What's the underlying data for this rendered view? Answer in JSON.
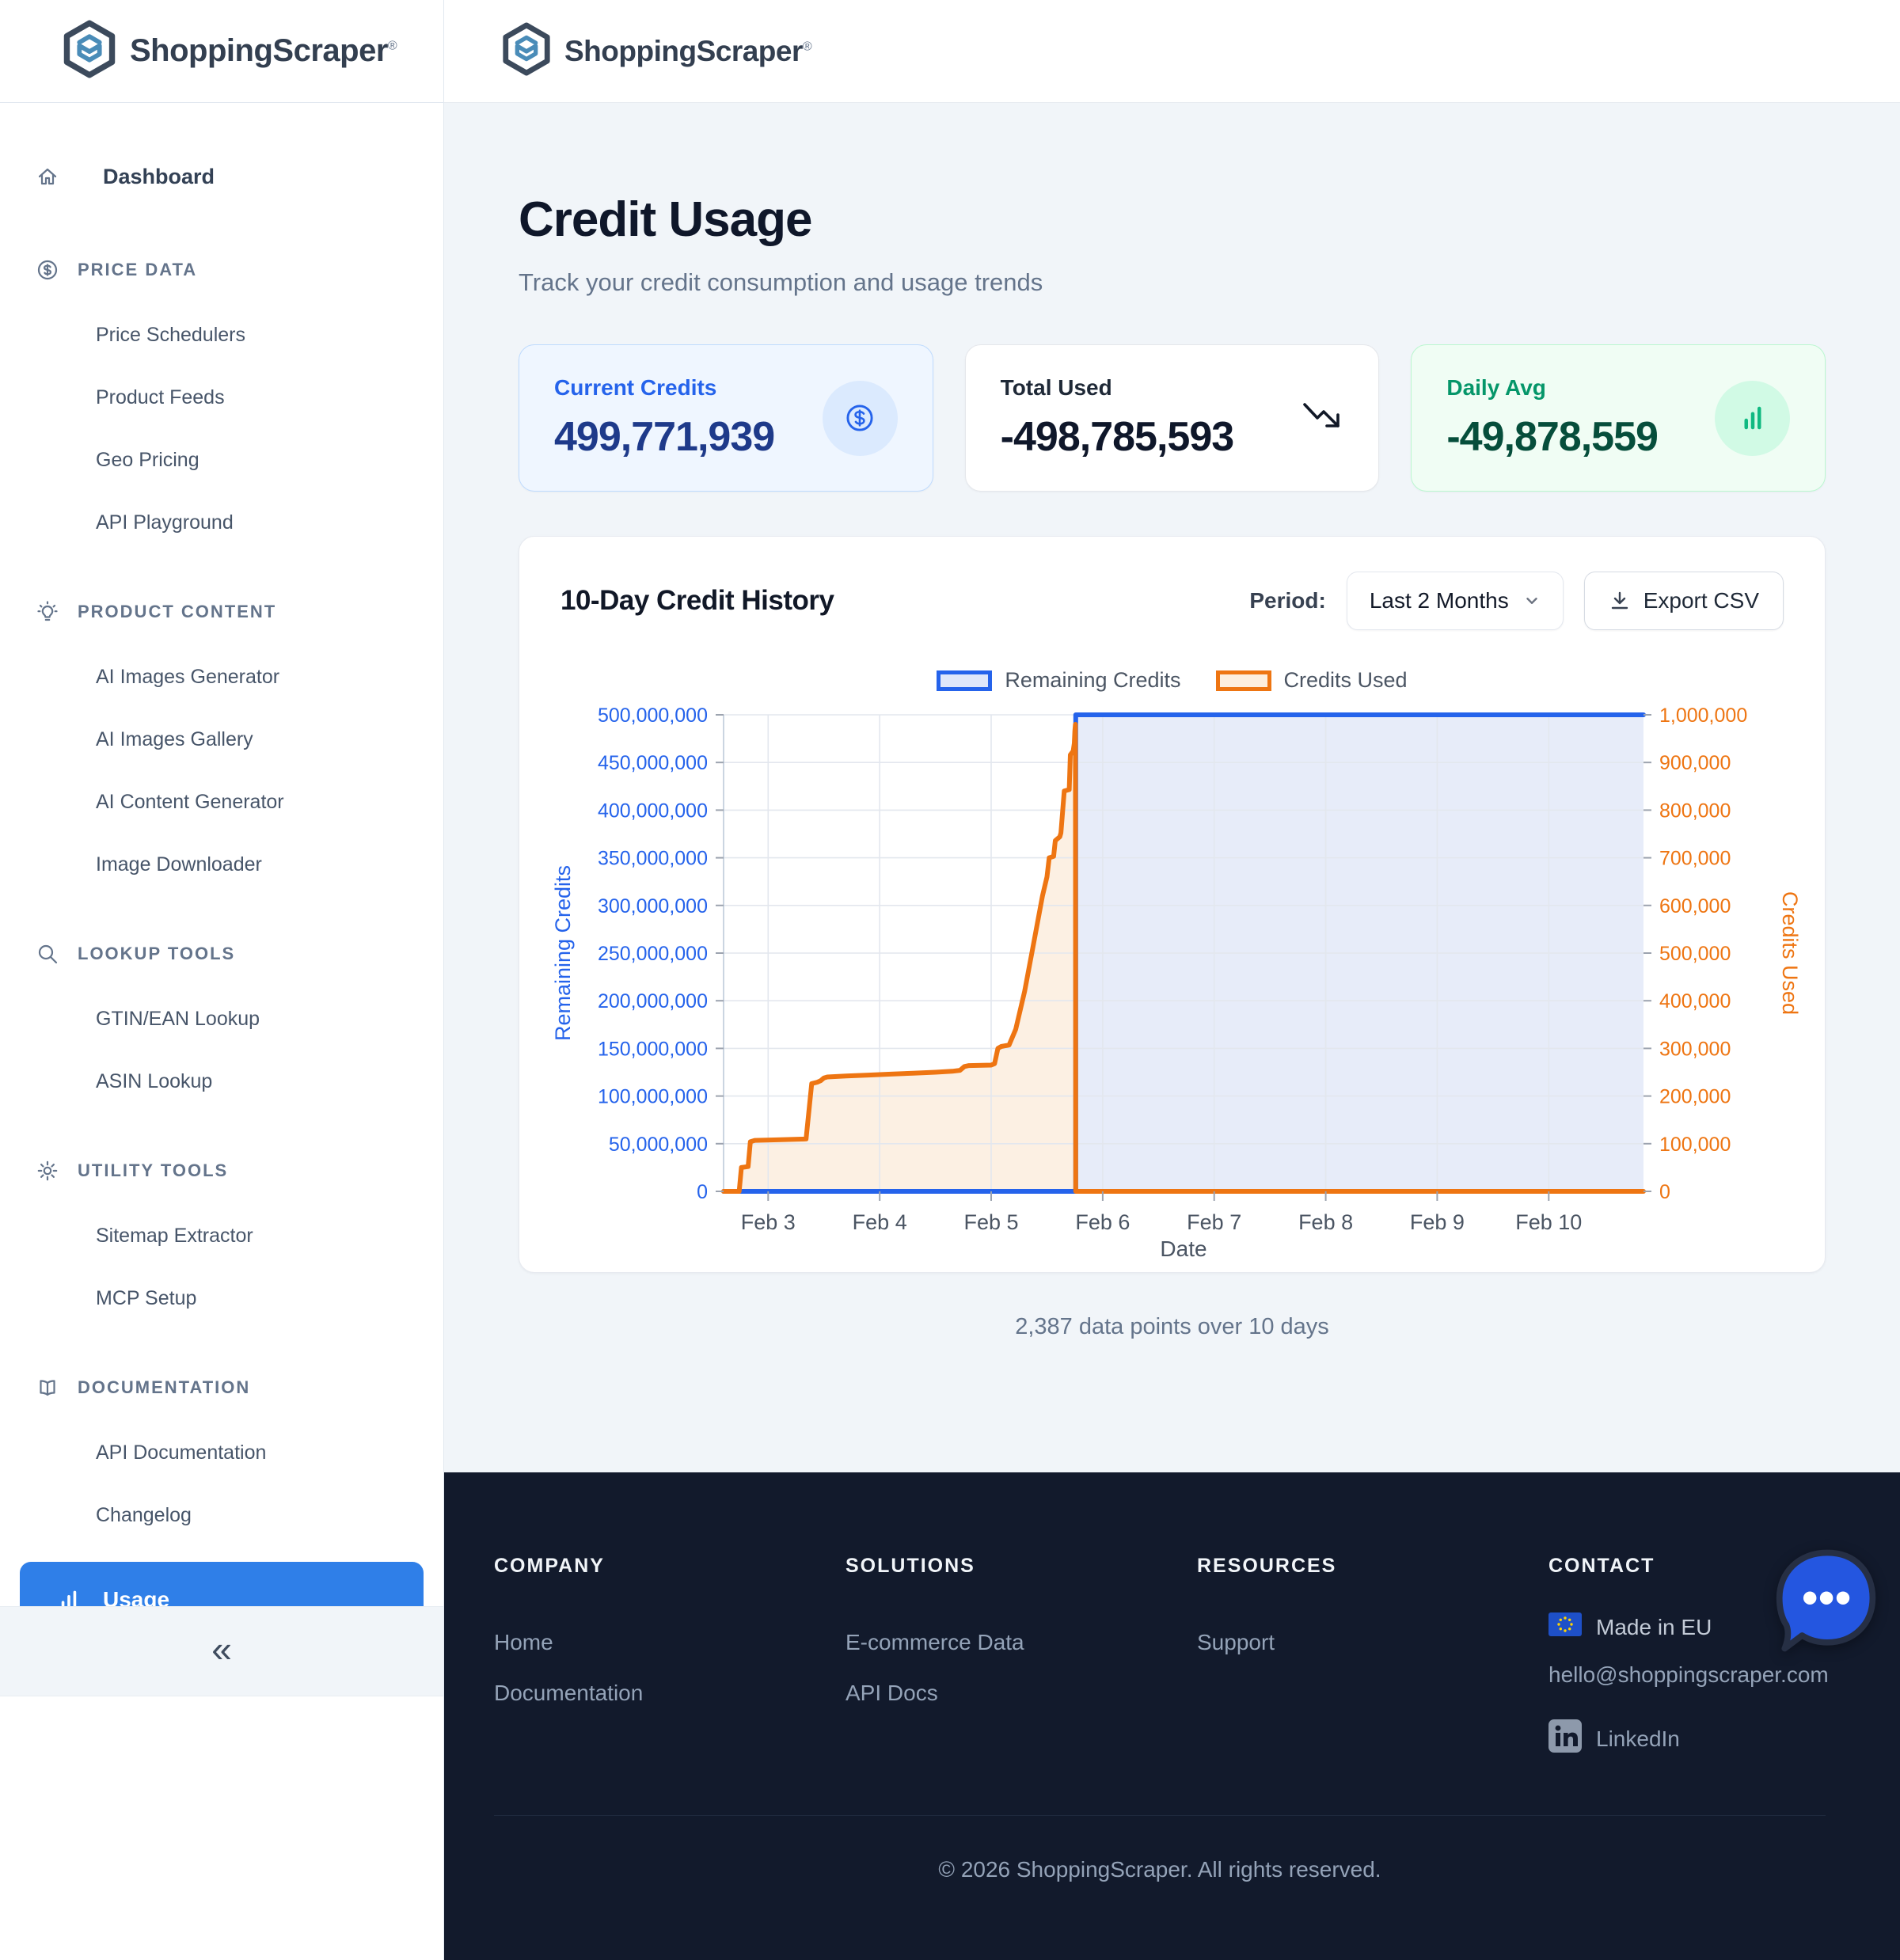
{
  "brand": {
    "name": "ShoppingScraper",
    "registered": "®"
  },
  "sidebar": {
    "dashboard": {
      "label": "Dashboard",
      "icon": "home"
    },
    "sections": [
      {
        "header": "PRICE DATA",
        "icon": "dollar-circle-icon",
        "items": [
          "Price Schedulers",
          "Product Feeds",
          "Geo Pricing",
          "API Playground"
        ]
      },
      {
        "header": "PRODUCT CONTENT",
        "icon": "lightbulb-icon",
        "items": [
          "AI Images Generator",
          "AI Images Gallery",
          "AI Content Generator",
          "Image Downloader"
        ]
      },
      {
        "header": "LOOKUP TOOLS",
        "icon": "search-icon",
        "items": [
          "GTIN/EAN Lookup",
          "ASIN Lookup"
        ]
      },
      {
        "header": "UTILITY TOOLS",
        "icon": "gear-icon",
        "items": [
          "Sitemap Extractor",
          "MCP Setup"
        ]
      },
      {
        "header": "DOCUMENTATION",
        "icon": "book-icon",
        "items": [
          "API Documentation",
          "Changelog"
        ]
      }
    ],
    "usage": {
      "label": "Usage",
      "icon": "bar-chart-icon"
    },
    "collapse_icon": "«"
  },
  "page": {
    "title": "Credit Usage",
    "subtitle": "Track your credit consumption and usage trends"
  },
  "stats": [
    {
      "label": "Current Credits",
      "value": "499,771,939",
      "icon": "dollar-circle-icon",
      "theme": "blue"
    },
    {
      "label": "Total Used",
      "value": "-498,785,593",
      "icon": "trending-down-icon",
      "theme": "white"
    },
    {
      "label": "Daily Avg",
      "value": "-49,878,559",
      "icon": "bar-chart-icon",
      "theme": "green"
    }
  ],
  "chart_card": {
    "title": "10-Day Credit History",
    "period_label": "Period:",
    "period_value": "Last 2 Months",
    "export_label": "Export CSV",
    "footnote": "2,387 data points over 10 days"
  },
  "chart_data": {
    "type": "area",
    "title": "10-Day Credit History",
    "grid": true,
    "legend_position": "top-center",
    "x_axis": {
      "label": "Date",
      "domain": [
        2.6,
        10.85
      ],
      "ticks": [
        {
          "label": "Feb 3",
          "day": 3
        },
        {
          "label": "Feb 4",
          "day": 4
        },
        {
          "label": "Feb 5",
          "day": 5
        },
        {
          "label": "Feb 6",
          "day": 6
        },
        {
          "label": "Feb 7",
          "day": 7
        },
        {
          "label": "Feb 8",
          "day": 8
        },
        {
          "label": "Feb 9",
          "day": 9
        },
        {
          "label": "Feb 10",
          "day": 10
        }
      ]
    },
    "y_left": {
      "label": "Remaining Credits",
      "color": "#2563eb",
      "min": 0,
      "max": 500000000,
      "tick_step": 50000000
    },
    "y_right": {
      "label": "Credits Used",
      "color": "#ee7512",
      "min": 0,
      "max": 1000000,
      "tick_step": 100000
    },
    "series": [
      {
        "name": "Remaining Credits",
        "axis": "left",
        "color": "#2563eb",
        "fill": "#e7ecf9",
        "legend_fill": "#dfe7fa",
        "points": [
          [
            2.6,
            0
          ],
          [
            5.758,
            0
          ],
          [
            5.758,
            500000000
          ],
          [
            10.85,
            500000000
          ]
        ]
      },
      {
        "name": "Credits Used",
        "axis": "right",
        "color": "#ee7512",
        "fill": "#fcf0e3",
        "legend_fill": "#fdeedd",
        "points": [
          [
            2.6,
            0
          ],
          [
            2.74,
            0
          ],
          [
            2.76,
            50000
          ],
          [
            2.82,
            52000
          ],
          [
            2.84,
            104000
          ],
          [
            2.88,
            107000
          ],
          [
            3.05,
            108000
          ],
          [
            3.34,
            110000
          ],
          [
            3.39,
            226000
          ],
          [
            3.44,
            229000
          ],
          [
            3.47,
            232000
          ],
          [
            3.5,
            238000
          ],
          [
            3.53,
            240000
          ],
          [
            3.7,
            242000
          ],
          [
            3.9,
            244000
          ],
          [
            4.1,
            246000
          ],
          [
            4.3,
            248000
          ],
          [
            4.5,
            250000
          ],
          [
            4.65,
            252000
          ],
          [
            4.72,
            254000
          ],
          [
            4.76,
            262000
          ],
          [
            4.8,
            264000
          ],
          [
            5.0,
            265000
          ],
          [
            5.03,
            268000
          ],
          [
            5.06,
            300000
          ],
          [
            5.09,
            304000
          ],
          [
            5.16,
            307000
          ],
          [
            5.22,
            340000
          ],
          [
            5.3,
            420000
          ],
          [
            5.38,
            520000
          ],
          [
            5.46,
            620000
          ],
          [
            5.5,
            660000
          ],
          [
            5.52,
            700000
          ],
          [
            5.56,
            703000
          ],
          [
            5.575,
            736000
          ],
          [
            5.615,
            744000
          ],
          [
            5.625,
            752000
          ],
          [
            5.655,
            840000
          ],
          [
            5.7,
            843000
          ],
          [
            5.71,
            916000
          ],
          [
            5.735,
            924000
          ],
          [
            5.745,
            940000
          ],
          [
            5.75,
            966000
          ],
          [
            5.755,
            980000
          ],
          [
            5.758,
            0
          ],
          [
            10.85,
            0
          ]
        ]
      }
    ],
    "footnote": "2,387 data points over 10 days"
  },
  "footer": {
    "columns": [
      {
        "heading": "COMPANY",
        "links": [
          "Home",
          "Documentation"
        ]
      },
      {
        "heading": "SOLUTIONS",
        "links": [
          "E-commerce Data",
          "API Docs"
        ]
      },
      {
        "heading": "RESOURCES",
        "links": [
          "Support"
        ]
      }
    ],
    "contact": {
      "heading": "CONTACT",
      "made_in": "Made in EU",
      "email": "hello@shoppingscraper.com",
      "linkedin": "LinkedIn"
    },
    "copyright": "© 2026 ShoppingScraper. All rights reserved."
  }
}
